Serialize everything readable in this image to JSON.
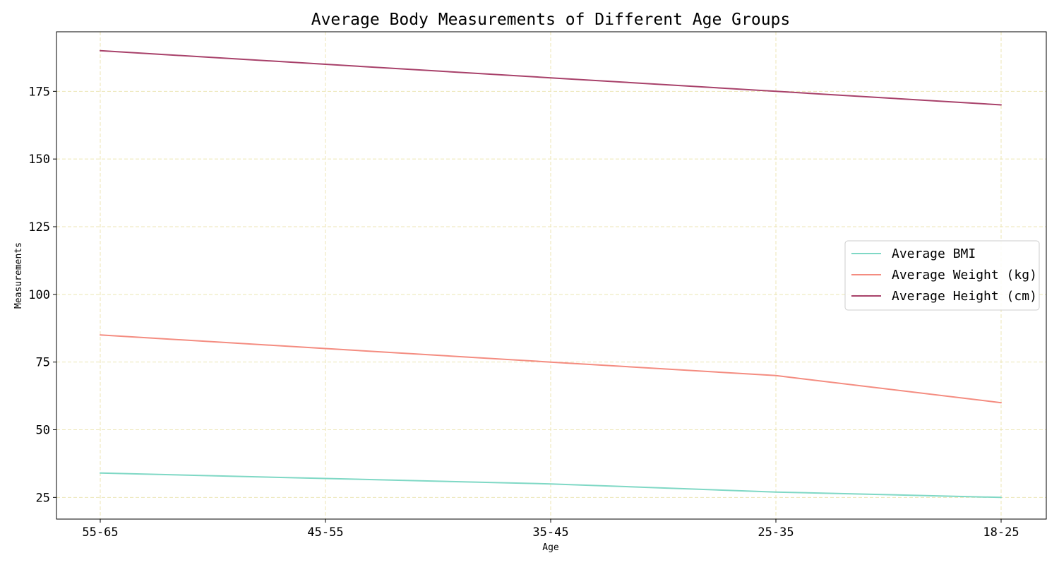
{
  "chart_data": {
    "type": "line",
    "title": "Average Body Measurements of Different Age Groups",
    "xlabel": "Age",
    "ylabel": "Measurements",
    "categories": [
      "55-65",
      "45-55",
      "35-45",
      "25-35",
      "18-25"
    ],
    "ylim": [
      17,
      197
    ],
    "yticks": [
      25,
      50,
      75,
      100,
      125,
      150,
      175
    ],
    "grid": true,
    "legend_position": "center-right",
    "series": [
      {
        "name": "Average BMI",
        "values": [
          34,
          32,
          30,
          27,
          25
        ],
        "color": "#7fd8c5"
      },
      {
        "name": "Average Weight (kg)",
        "values": [
          85,
          80,
          75,
          70,
          60
        ],
        "color": "#f48c80"
      },
      {
        "name": "Average Height (cm)",
        "values": [
          190,
          185,
          180,
          175,
          170
        ],
        "color": "#a8416a"
      }
    ]
  }
}
